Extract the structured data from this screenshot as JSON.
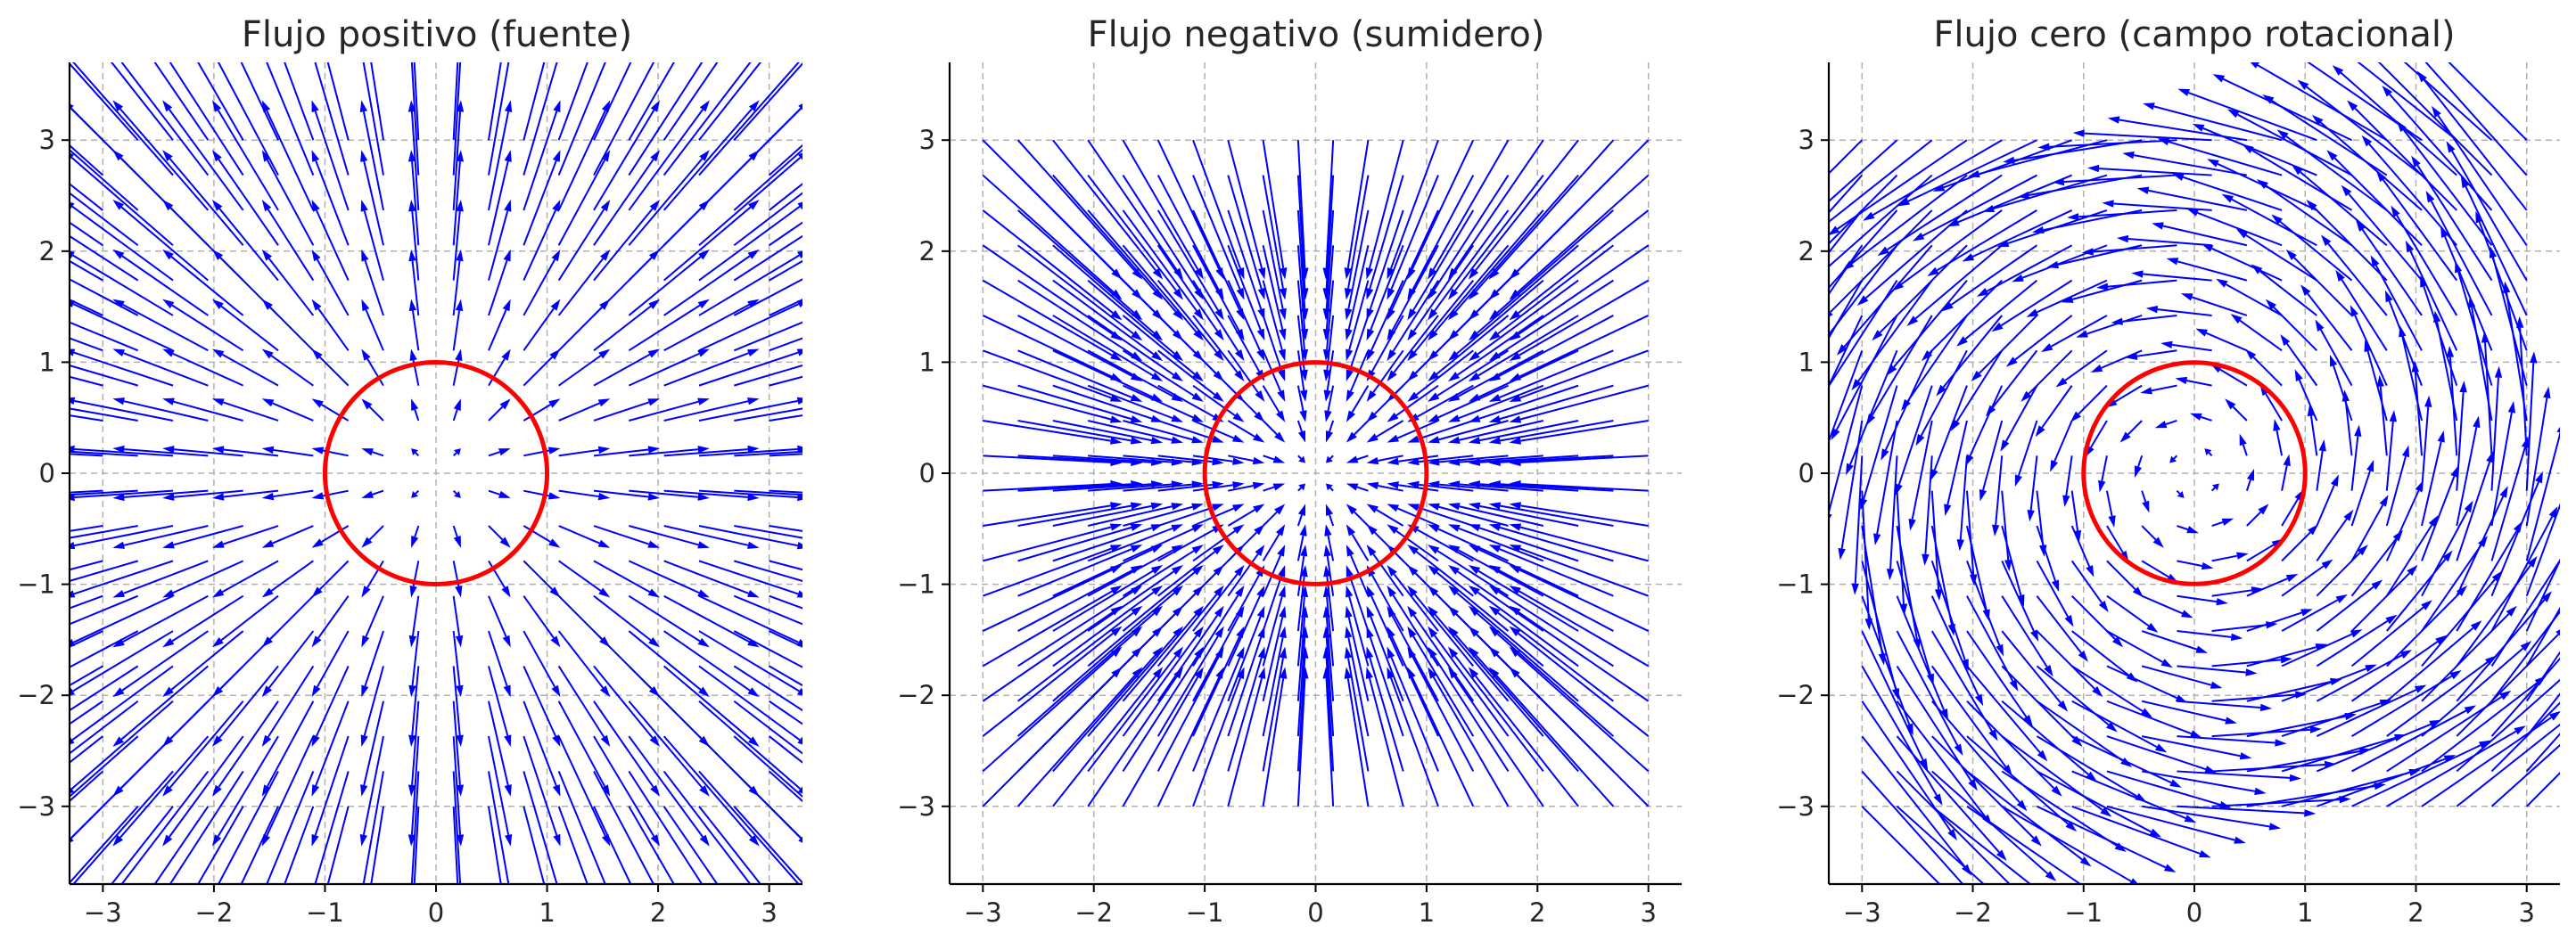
{
  "chart_data": [
    {
      "type": "quiver",
      "title": "Flujo positivo (fuente)",
      "field": "source",
      "xlim": [
        -3.3,
        3.3
      ],
      "ylim": [
        -3.7,
        3.7
      ],
      "xticks": [
        -3,
        -2,
        -1,
        0,
        1,
        2,
        3
      ],
      "yticks": [
        -3,
        -2,
        -1,
        0,
        1,
        2,
        3
      ],
      "xtick_labels": [
        "−3",
        "−2",
        "−1",
        "0",
        "1",
        "2",
        "3"
      ],
      "ytick_labels": [
        "−3",
        "−2",
        "−1",
        "0",
        "1",
        "2",
        "3"
      ],
      "grid_range": [
        -3,
        3
      ],
      "grid_count": 20,
      "circle": {
        "cx": 0,
        "cy": 0,
        "r": 1
      },
      "grid": true
    },
    {
      "type": "quiver",
      "title": "Flujo negativo (sumidero)",
      "field": "sink",
      "xlim": [
        -3.3,
        3.3
      ],
      "ylim": [
        -3.7,
        3.7
      ],
      "xticks": [
        -3,
        -2,
        -1,
        0,
        1,
        2,
        3
      ],
      "yticks": [
        -3,
        -2,
        -1,
        0,
        1,
        2,
        3
      ],
      "xtick_labels": [
        "−3",
        "−2",
        "−1",
        "0",
        "1",
        "2",
        "3"
      ],
      "ytick_labels": [
        "−3",
        "−2",
        "−1",
        "0",
        "1",
        "2",
        "3"
      ],
      "grid_range": [
        -3,
        3
      ],
      "grid_count": 20,
      "circle": {
        "cx": 0,
        "cy": 0,
        "r": 1
      },
      "grid": true
    },
    {
      "type": "quiver",
      "title": "Flujo cero (campo rotacional)",
      "field": "rotational",
      "xlim": [
        -3.3,
        3.3
      ],
      "ylim": [
        -3.7,
        3.7
      ],
      "xticks": [
        -3,
        -2,
        -1,
        0,
        1,
        2,
        3
      ],
      "yticks": [
        -3,
        -2,
        -1,
        0,
        1,
        2,
        3
      ],
      "xtick_labels": [
        "−3",
        "−2",
        "−1",
        "0",
        "1",
        "2",
        "3"
      ],
      "ytick_labels": [
        "−3",
        "−2",
        "−1",
        "0",
        "1",
        "2",
        "3"
      ],
      "grid_range": [
        -3,
        3
      ],
      "grid_count": 20,
      "circle": {
        "cx": 0,
        "cy": 0,
        "r": 1
      },
      "grid": true
    }
  ],
  "colors": {
    "arrows": "#0000ff",
    "circle": "#ff0000",
    "grid": "#b0b0b0",
    "axes": "#000000",
    "text": "#262626"
  }
}
